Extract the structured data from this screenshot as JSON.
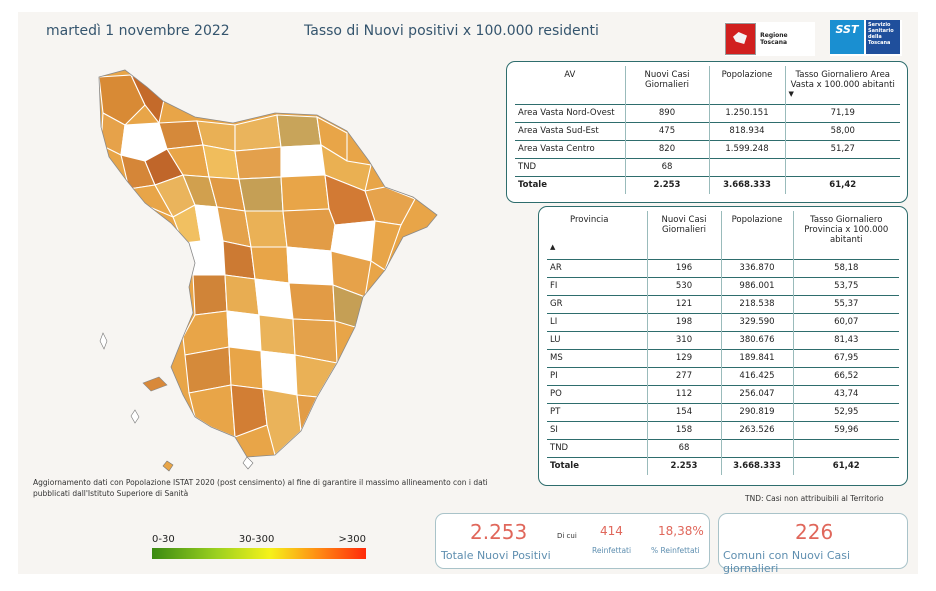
{
  "header": {
    "date": "martedì 1 novembre 2022",
    "title": "Tasso di Nuovi positivi x 100.000 residenti"
  },
  "logos": {
    "regione": "Regione Toscana",
    "sst_short": "SST",
    "sst_full": "Servizio Sanitario della Toscana"
  },
  "av_table": {
    "headers": [
      "AV",
      "Nuovi Casi Giornalieri",
      "Popolazione",
      "Tasso Giornaliero Area Vasta x 100.000 abitanti"
    ],
    "rows": [
      [
        "Area Vasta Nord-Ovest",
        "890",
        "1.250.151",
        "71,19"
      ],
      [
        "Area Vasta Sud-Est",
        "475",
        "818.934",
        "58,00"
      ],
      [
        "Area Vasta Centro",
        "820",
        "1.599.248",
        "51,27"
      ],
      [
        "TND",
        "68",
        "",
        ""
      ]
    ],
    "total": [
      "Totale",
      "2.253",
      "3.668.333",
      "61,42"
    ]
  },
  "prov_table": {
    "headers": [
      "Provincia",
      "Nuovi Casi Giornalieri",
      "Popolazione",
      "Tasso Giornaliero Provincia x 100.000 abitanti"
    ],
    "rows": [
      [
        "AR",
        "196",
        "336.870",
        "58,18"
      ],
      [
        "FI",
        "530",
        "986.001",
        "53,75"
      ],
      [
        "GR",
        "121",
        "218.538",
        "55,37"
      ],
      [
        "LI",
        "198",
        "329.590",
        "60,07"
      ],
      [
        "LU",
        "310",
        "380.676",
        "81,43"
      ],
      [
        "MS",
        "129",
        "189.841",
        "67,95"
      ],
      [
        "PI",
        "277",
        "416.425",
        "66,52"
      ],
      [
        "PO",
        "112",
        "256.047",
        "43,74"
      ],
      [
        "PT",
        "154",
        "290.819",
        "52,95"
      ],
      [
        "SI",
        "158",
        "263.526",
        "59,96"
      ],
      [
        "TND",
        "68",
        "",
        ""
      ]
    ],
    "total": [
      "Totale",
      "2.253",
      "3.668.333",
      "61,42"
    ]
  },
  "tnd_note": "TND:  Casi non attribuibili al Territorio",
  "update_note": "Aggiornamento dati con Popolazione ISTAT 2020 (post censimento) al fine di garantire il massimo allineamento con i dati pubblicati dall'Istituto Superiore di Sanità",
  "legend": {
    "low": "0-30",
    "mid": "30-300",
    "high": ">300"
  },
  "kpi": {
    "total_new": "2.253",
    "total_new_label": "Totale Nuovi Positivi",
    "di_cui": "Di cui",
    "reinfected": "414",
    "reinfected_label": "Reinfettati",
    "reinfected_pct": "18,38%",
    "reinfected_pct_label": "% Reinfettati",
    "municipalities": "226",
    "municipalities_label": "Comuni con Nuovi Casi giornalieri"
  },
  "colors": {
    "accent_text": "#35556e",
    "kpi_value": "#e0675b",
    "kpi_label": "#5f8fb0",
    "table_border": "#2e6d6d"
  }
}
